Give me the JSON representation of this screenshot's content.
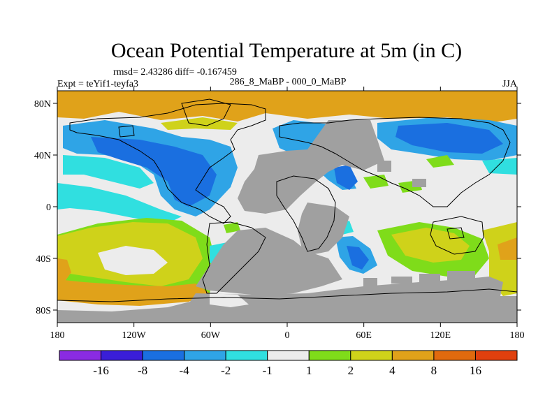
{
  "figure": {
    "title": "Ocean Potential Temperature at 5m (in C)",
    "stats": "rmsd= 2.43286 diff= -0.167459",
    "left_label": "Expt = teYif1-teyfa3",
    "center_label": "286_8_MaBP - 000_0_MaBP",
    "right_label": "JJA"
  },
  "map": {
    "lon_ticks": [
      "180",
      "120W",
      "60W",
      "0",
      "60E",
      "120E",
      "180"
    ],
    "lat_ticks": [
      "80N",
      "40N",
      "0",
      "40S",
      "80S"
    ],
    "land_color": "#a0a0a0",
    "coastline_color": "#000000"
  },
  "colorbar": {
    "colors": [
      "#8a2be2",
      "#3a1ed8",
      "#1a6fe0",
      "#2fa4e6",
      "#30dfe0",
      "#ececec",
      "#7fdc1a",
      "#cfd21a",
      "#e0a21a",
      "#e06a0e",
      "#e0400e"
    ],
    "labels": [
      "-16",
      "-8",
      "-4",
      "-2",
      "-1",
      "1",
      "2",
      "4",
      "8",
      "16"
    ]
  }
}
